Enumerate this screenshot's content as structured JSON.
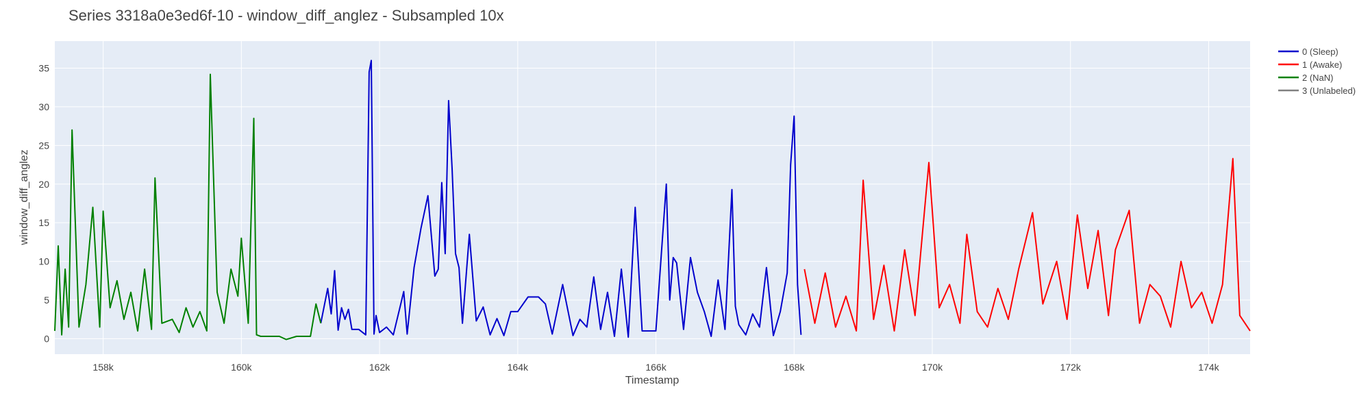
{
  "chart_data": {
    "type": "line",
    "title": "Series 3318a0e3ed6f-10 - window_diff_anglez - Subsampled 10x",
    "xlabel": "Timestamp",
    "ylabel": "window_diff_anglez",
    "xlim": [
      157300,
      174600
    ],
    "ylim": [
      -2,
      38.5
    ],
    "x_ticks": [
      158000,
      160000,
      162000,
      164000,
      166000,
      168000,
      170000,
      172000,
      174000
    ],
    "x_tick_labels": [
      "158k",
      "160k",
      "162k",
      "164k",
      "166k",
      "168k",
      "170k",
      "172k",
      "174k"
    ],
    "y_ticks": [
      0,
      5,
      10,
      15,
      20,
      25,
      30,
      35
    ],
    "y_tick_labels": [
      "0",
      "5",
      "10",
      "15",
      "20",
      "25",
      "30",
      "35"
    ],
    "grid": true,
    "plot_background": "#e5ecf6",
    "legend_position": "right",
    "series": [
      {
        "name": "0 (Sleep)",
        "color": "#0000cc",
        "x": [
          161150,
          161250,
          161300,
          161350,
          161400,
          161450,
          161500,
          161550,
          161600,
          161700,
          161800,
          161850,
          161880,
          161920,
          161950,
          162000,
          162100,
          162200,
          162300,
          162350,
          162400,
          162500,
          162600,
          162700,
          162800,
          162850,
          162900,
          162950,
          163000,
          163050,
          163100,
          163150,
          163200,
          163300,
          163400,
          163500,
          163600,
          163700,
          163800,
          163900,
          164000,
          164150,
          164300,
          164400,
          164500,
          164650,
          164800,
          164900,
          165000,
          165100,
          165200,
          165300,
          165400,
          165500,
          165600,
          165700,
          165800,
          166000,
          166150,
          166200,
          166250,
          166300,
          166400,
          166500,
          166600,
          166700,
          166800,
          166900,
          167000,
          167100,
          167150,
          167200,
          167300,
          167400,
          167500,
          167600,
          167700,
          167800,
          167900,
          167950,
          168000,
          168050,
          168100
        ],
        "values": [
          2.0,
          6.5,
          3.2,
          8.8,
          1.1,
          4.0,
          2.5,
          3.8,
          1.2,
          1.2,
          0.5,
          34.5,
          36.0,
          0.6,
          3.0,
          0.8,
          1.5,
          0.5,
          4.2,
          6.1,
          0.6,
          9.2,
          14.3,
          18.5,
          8.1,
          9.0,
          20.2,
          11.0,
          30.8,
          22.0,
          11.0,
          9.2,
          2.0,
          13.5,
          2.3,
          4.1,
          0.5,
          2.6,
          0.4,
          3.5,
          3.5,
          5.4,
          5.4,
          4.5,
          0.6,
          7.0,
          0.4,
          2.5,
          1.5,
          8.0,
          1.2,
          6.0,
          0.3,
          9.0,
          0.2,
          17.0,
          1.0,
          1.0,
          20.0,
          5.0,
          10.5,
          9.8,
          1.2,
          10.5,
          6.0,
          3.5,
          0.3,
          7.6,
          1.2,
          19.3,
          4.2,
          1.8,
          0.5,
          3.2,
          1.5,
          9.2,
          0.4,
          3.5,
          8.5,
          22.5,
          28.8,
          7.0,
          0.5
        ]
      },
      {
        "name": "1 (Awake)",
        "color": "#ff0000",
        "x": [
          168150,
          168300,
          168450,
          168600,
          168750,
          168900,
          169000,
          169150,
          169300,
          169450,
          169600,
          169750,
          169950,
          170100,
          170250,
          170400,
          170500,
          170650,
          170800,
          170950,
          171100,
          171250,
          171450,
          171600,
          171800,
          171950,
          172100,
          172250,
          172400,
          172550,
          172650,
          172850,
          173000,
          173150,
          173300,
          173450,
          173600,
          173750,
          173900,
          174050,
          174200,
          174350,
          174450,
          174600
        ],
        "values": [
          9.0,
          2.0,
          8.5,
          1.5,
          5.5,
          1.0,
          20.5,
          2.5,
          9.5,
          1.0,
          11.5,
          3.0,
          22.8,
          4.0,
          7.0,
          2.0,
          13.5,
          3.5,
          1.5,
          6.5,
          2.5,
          9.0,
          16.3,
          4.5,
          10.0,
          2.5,
          16.0,
          6.5,
          14.0,
          3.0,
          11.5,
          16.6,
          2.0,
          7.0,
          5.5,
          1.5,
          10.0,
          4.0,
          6.0,
          2.0,
          7.0,
          23.3,
          3.0,
          1.0
        ]
      },
      {
        "name": "2 (NaN)",
        "color": "#008000",
        "x": [
          157300,
          157350,
          157400,
          157450,
          157500,
          157550,
          157650,
          157750,
          157850,
          157950,
          158000,
          158100,
          158200,
          158300,
          158400,
          158500,
          158600,
          158700,
          158750,
          158850,
          159000,
          159100,
          159200,
          159300,
          159400,
          159500,
          159550,
          159650,
          159750,
          159850,
          159950,
          160000,
          160100,
          160180,
          160220,
          160280,
          160400,
          160550,
          160650,
          160800,
          161000,
          161080,
          161150
        ],
        "values": [
          1.0,
          12.0,
          0.5,
          9.0,
          1.5,
          27.0,
          1.5,
          7.0,
          17.0,
          1.5,
          16.5,
          4.0,
          7.5,
          2.5,
          6.0,
          1.0,
          9.0,
          1.2,
          20.8,
          2.0,
          2.5,
          0.8,
          4.0,
          1.5,
          3.5,
          1.0,
          34.2,
          6.0,
          2.0,
          9.0,
          5.5,
          13.0,
          2.0,
          28.5,
          0.5,
          0.3,
          0.3,
          0.3,
          -0.1,
          0.3,
          0.3,
          4.5,
          2.0
        ]
      },
      {
        "name": "3 (Unlabeled)",
        "color": "#808080",
        "x": [],
        "values": []
      }
    ]
  }
}
